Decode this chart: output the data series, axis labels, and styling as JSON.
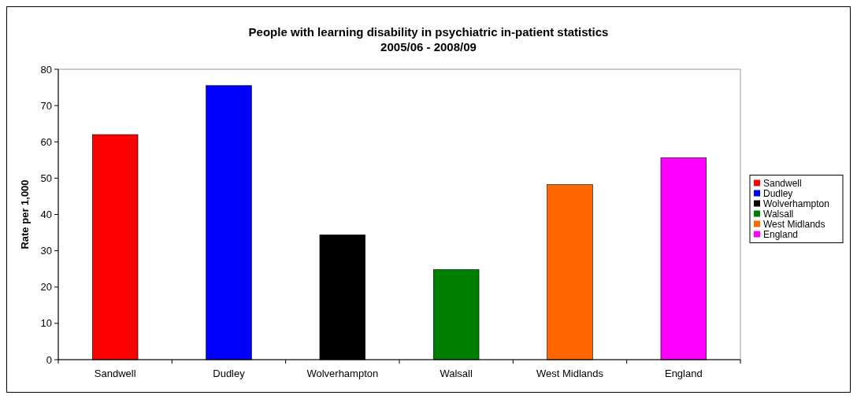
{
  "chart_data": {
    "type": "bar",
    "title": "People with learning disability in psychiatric in-patient statistics",
    "subtitle": "2005/06 - 2008/09",
    "ylabel": "Rate per 1,000",
    "categories": [
      "Sandwell",
      "Dudley",
      "Wolverhampton",
      "Walsall",
      "West Midlands",
      "England"
    ],
    "series": [
      {
        "name": "Sandwell",
        "color": "#ff0000",
        "values": [
          62.0,
          null,
          null,
          null,
          null,
          null
        ]
      },
      {
        "name": "Dudley",
        "color": "#0000ff",
        "values": [
          null,
          75.5,
          null,
          null,
          null,
          null
        ]
      },
      {
        "name": "Wolverhampton",
        "color": "#000000",
        "values": [
          null,
          null,
          34.4,
          null,
          null,
          null
        ]
      },
      {
        "name": "Walsall",
        "color": "#008000",
        "values": [
          null,
          null,
          null,
          24.8,
          null,
          null
        ]
      },
      {
        "name": "West Midlands",
        "color": "#ff6600",
        "values": [
          null,
          null,
          null,
          null,
          48.2,
          null
        ]
      },
      {
        "name": "England",
        "color": "#ff00ff",
        "values": [
          null,
          null,
          null,
          null,
          null,
          55.6
        ]
      }
    ],
    "ylim": [
      0,
      80
    ],
    "yticks": [
      0,
      10,
      20,
      30,
      40,
      50,
      60,
      70,
      80
    ],
    "legend": "right"
  }
}
